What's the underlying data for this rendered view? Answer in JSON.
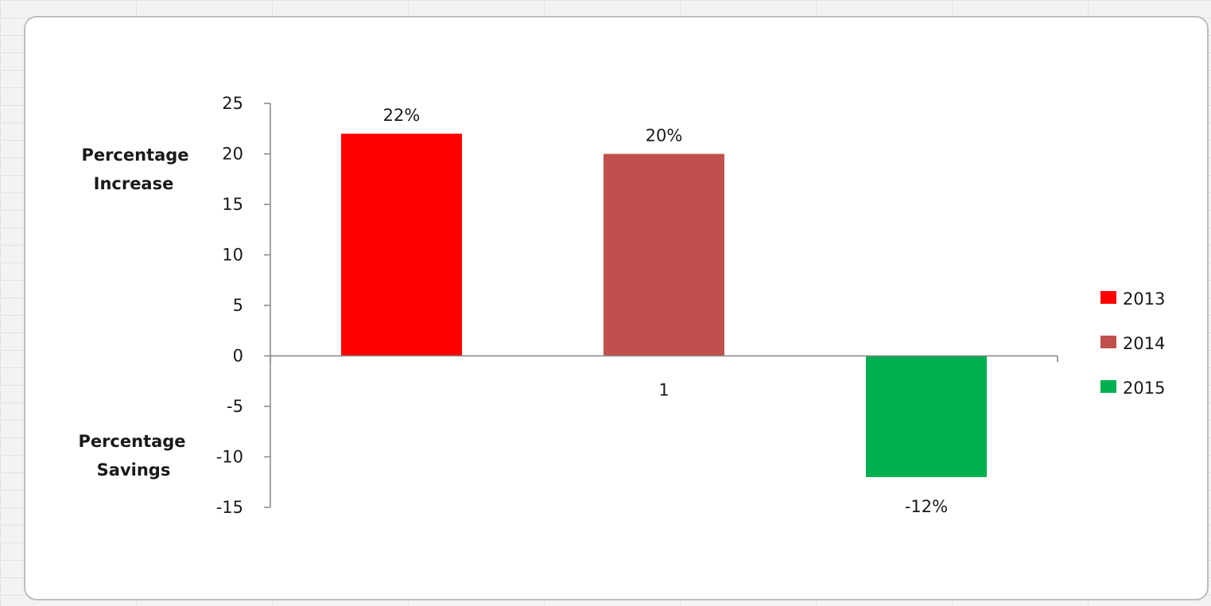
{
  "side_labels": {
    "top": [
      "Percentage",
      "Increase"
    ],
    "bottom": [
      "Percentage",
      "Savings"
    ]
  },
  "chart_data": {
    "type": "bar",
    "categories": [
      "1"
    ],
    "series": [
      {
        "name": "2013",
        "values": [
          22
        ],
        "label": "22%",
        "color": "#ff0000"
      },
      {
        "name": "2014",
        "values": [
          20
        ],
        "label": "20%",
        "color": "#c0504d"
      },
      {
        "name": "2015",
        "values": [
          -12
        ],
        "label": "-12%",
        "color": "#00b050"
      }
    ],
    "ylim": [
      -15,
      25
    ],
    "yticks": [
      25,
      20,
      15,
      10,
      5,
      0,
      -5,
      -10,
      -15
    ],
    "legend_position": "right",
    "grid": false
  }
}
